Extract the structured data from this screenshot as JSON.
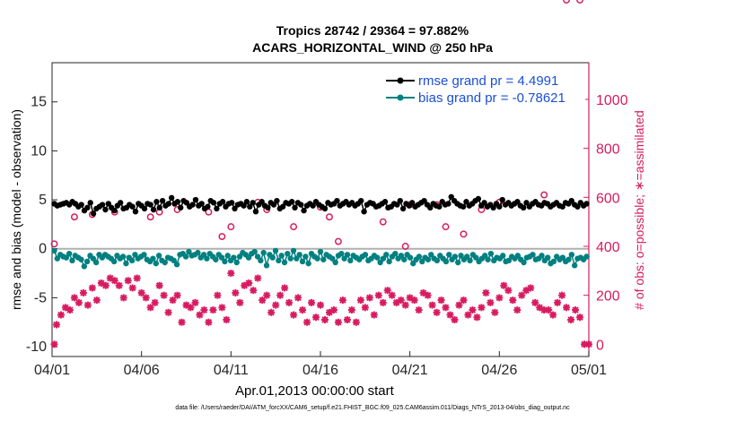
{
  "chart_data": {
    "type": "line",
    "title_line1": "Tropics 28742 / 29364 = 97.882%",
    "title_line2": "ACARS_HORIZONTAL_WIND @ 250 hPa",
    "xlabel": "Apr.01,2013 00:00:00 start",
    "ylabel_left": "rmse and bias (model - observation)",
    "ylabel_right": "# of obs: o=possible; ∗=assimilated",
    "footnote": "data file: /Users/raeder/DAI/ATM_forcXX/CAM6_setup/f.e21.FHIST_BGC.f09_025.CAM6assim.011/Diags_NTrS_2013-04/obs_diag_output.nc",
    "x_ticks": [
      "04/01",
      "04/06",
      "04/11",
      "04/16",
      "04/21",
      "04/26",
      "05/01"
    ],
    "x_range_days": [
      0,
      30
    ],
    "ylim_left": [
      -11,
      19
    ],
    "ylim_right": [
      -50,
      1150
    ],
    "y_ticks_left": [
      "-10",
      "-5",
      "0",
      "5",
      "10",
      "15"
    ],
    "y_ticks_right": [
      "0",
      "200",
      "400",
      "600",
      "800",
      "1000"
    ],
    "zero_line": 0,
    "legend": {
      "location": "top-right",
      "entries": [
        "rmse grand pr = 4.4991",
        "bias grand pr = -0.78621"
      ]
    },
    "colors": {
      "rmse": "#000000",
      "bias": "#008080",
      "obs": "#d81b60",
      "legend_text": "#1a4fd6"
    },
    "series_rmse": [
      4.6,
      4.4,
      4.5,
      4.6,
      4.7,
      4.5,
      4.8,
      4.6,
      4.3,
      4.5,
      3.9,
      4.2,
      4.7,
      3.6,
      4.1,
      4.3,
      4.5,
      4.0,
      4.6,
      4.2,
      3.9,
      4.4,
      4.7,
      4.1,
      4.2,
      4.5,
      4.3,
      3.8,
      4.6,
      4.4,
      4.1,
      4.6,
      4.5,
      4.0,
      4.8,
      4.2,
      4.9,
      4.4,
      4.6,
      5.2,
      4.6,
      4.8,
      4.2,
      4.9,
      4.7,
      4.3,
      4.5,
      5.0,
      4.4,
      4.6,
      4.1,
      4.3,
      4.9,
      4.7,
      4.1,
      4.6,
      4.8,
      4.3,
      4.6,
      4.7,
      4.1,
      4.5,
      4.6,
      4.4,
      4.8,
      4.3,
      4.7,
      3.8,
      4.5,
      4.8,
      4.4,
      4.2,
      4.7,
      4.5,
      4.9,
      4.1,
      4.3,
      4.7,
      4.6,
      4.8,
      4.2,
      4.7,
      4.5,
      3.9,
      4.4,
      4.6,
      4.4,
      4.8,
      4.5,
      4.3,
      4.1,
      4.7,
      4.5,
      4.6,
      4.9,
      4.4,
      4.6,
      4.8,
      4.5,
      4.7,
      4.4,
      4.6,
      4.9,
      3.8,
      4.5,
      4.7,
      4.6,
      4.3,
      4.4,
      4.6,
      4.8,
      4.2,
      4.3,
      4.6,
      4.5,
      4.9,
      4.1,
      4.6,
      4.4,
      4.7,
      4.3,
      4.5,
      4.7,
      4.9,
      4.5,
      4.2,
      4.6,
      4.4,
      4.3,
      4.8,
      4.5,
      4.6,
      5.3,
      4.9,
      4.6,
      4.4,
      4.3,
      4.8,
      4.4,
      4.6,
      4.9,
      5.1,
      4.4,
      4.7,
      4.3,
      4.5,
      4.2,
      4.6,
      4.3,
      5.0,
      4.5,
      4.7,
      4.4,
      4.6,
      4.8,
      4.4,
      4.2,
      4.7,
      4.3,
      4.6,
      4.8,
      4.5,
      4.4,
      4.7,
      4.6,
      4.3,
      4.5,
      4.7,
      4.4,
      4.3,
      4.7,
      4.6,
      4.9,
      4.5,
      4.3,
      4.7,
      4.4,
      4.6
    ],
    "series_bias": [
      -0.2,
      -1.0,
      -0.6,
      -0.8,
      -0.9,
      -0.5,
      -1.2,
      -0.7,
      -0.9,
      -1.1,
      -1.8,
      -1.3,
      -0.7,
      -1.0,
      -1.4,
      -0.6,
      -0.9,
      -0.6,
      -0.8,
      -1.0,
      -1.3,
      -0.7,
      -1.0,
      -0.8,
      -1.5,
      -0.9,
      -1.2,
      -0.6,
      -1.0,
      -0.8,
      -0.6,
      -1.1,
      -1.3,
      -1.0,
      -1.5,
      -0.7,
      -1.2,
      -1.4,
      -0.9,
      -1.0,
      -1.2,
      -1.6,
      -0.6,
      -0.5,
      -0.8,
      -0.3,
      -0.7,
      -0.6,
      -0.4,
      -0.9,
      -0.6,
      -1.0,
      -0.5,
      -0.8,
      -1.1,
      -0.6,
      -0.9,
      -1.3,
      -0.7,
      -1.2,
      -0.9,
      -1.4,
      -0.8,
      -0.4,
      -0.6,
      -0.9,
      -0.5,
      -0.3,
      -0.8,
      -1.2,
      -0.4,
      -1.7,
      -0.6,
      -0.9,
      -0.2,
      -1.2,
      -0.7,
      -1.4,
      -0.5,
      -1.0,
      -0.2,
      -1.0,
      -0.6,
      -1.3,
      -0.8,
      -1.5,
      -0.5,
      -0.8,
      -1.0,
      -0.3,
      -1.1,
      -0.6,
      -0.8,
      -1.0,
      -1.4,
      -0.7,
      -0.5,
      -1.0,
      -0.6,
      -1.2,
      -0.7,
      -0.9,
      -1.1,
      -0.8,
      -0.6,
      -1.2,
      -1.0,
      -0.7,
      -0.9,
      -1.4,
      -1.0,
      -0.6,
      -1.3,
      -0.8,
      -0.5,
      -1.0,
      -0.7,
      -1.1,
      -0.6,
      -0.9,
      -1.5,
      -1.1,
      -0.8,
      -1.3,
      -0.9,
      -1.1,
      -0.6,
      -1.0,
      -1.2,
      -0.7,
      -1.0,
      -1.3,
      -0.6,
      -1.1,
      -0.8,
      -1.4,
      -0.7,
      -1.1,
      -0.8,
      -1.2,
      -0.6,
      -0.9,
      -1.3,
      -1.0,
      -0.7,
      -1.1,
      -0.5,
      -1.2,
      -0.9,
      -1.0,
      -0.7,
      -1.3,
      -1.2,
      -0.8,
      -1.0,
      -0.7,
      -1.1,
      -1.4,
      -0.9,
      -0.8,
      -0.6,
      -1.1,
      -1.0,
      -0.7,
      -1.2,
      -0.9,
      -1.5,
      -1.3,
      -0.8,
      -1.1,
      -0.9,
      -1.3,
      -1.1,
      -0.6,
      -1.7,
      -1.0,
      -0.9,
      -1.1,
      -0.8
    ],
    "obs_days": [
      0.125,
      0.125,
      30.0,
      0.25,
      0.5,
      0.75,
      1.0,
      1.25,
      1.5,
      1.75,
      2.0,
      2.25,
      2.5,
      2.75,
      3.0,
      3.25,
      3.5,
      3.75,
      4.0,
      4.25,
      4.5,
      4.75,
      5.0,
      5.25,
      5.5,
      5.75,
      6.0,
      6.25,
      6.5,
      6.75,
      7.0,
      7.25,
      7.5,
      7.75,
      8.0,
      8.25,
      8.5,
      8.75,
      9.0,
      9.25,
      9.5,
      9.75,
      10.0,
      10.25,
      10.5,
      10.75,
      11.0,
      11.25,
      11.5,
      11.75,
      12.0,
      12.25,
      12.5,
      12.75,
      13.0,
      13.25,
      13.5,
      13.75,
      14.0,
      14.25,
      14.5,
      14.75,
      15.0,
      15.25,
      15.5,
      15.75,
      16.0,
      16.25,
      16.5,
      16.75,
      17.0,
      17.25,
      17.5,
      17.75,
      18.0,
      18.25,
      18.5,
      18.75,
      19.0,
      19.25,
      19.5,
      19.75,
      20.0,
      20.25,
      20.5,
      20.75,
      21.0,
      21.25,
      21.5,
      21.75,
      22.0,
      22.25,
      22.5,
      22.75,
      23.0,
      23.25,
      23.5,
      23.75,
      24.0,
      24.25,
      24.5,
      24.75,
      25.0,
      25.25,
      25.5,
      25.75,
      26.0,
      26.25,
      26.5,
      26.75,
      27.0,
      27.25,
      27.5,
      27.75,
      28.0,
      28.25,
      28.5,
      28.75,
      29.0,
      29.25,
      29.5,
      29.75,
      1.25,
      2.25,
      3.5,
      5.5,
      6.0,
      7.0,
      8.75,
      9.5,
      10.0,
      11.5,
      12.0,
      13.5,
      15.0,
      15.5,
      16.0,
      18.5,
      19.75,
      20.0,
      21.5,
      22.0,
      23.0,
      24.0,
      25.0,
      27.5,
      28.75,
      29.5
    ],
    "obs_counts": [
      0,
      410,
      0,
      80,
      120,
      150,
      140,
      190,
      170,
      210,
      160,
      230,
      180,
      250,
      240,
      270,
      260,
      240,
      190,
      260,
      230,
      270,
      210,
      190,
      150,
      170,
      240,
      200,
      130,
      180,
      200,
      90,
      160,
      150,
      170,
      120,
      140,
      90,
      140,
      200,
      150,
      100,
      290,
      210,
      170,
      240,
      250,
      220,
      270,
      180,
      200,
      130,
      160,
      200,
      230,
      170,
      120,
      190,
      140,
      90,
      170,
      110,
      160,
      100,
      130,
      140,
      90,
      180,
      100,
      140,
      90,
      180,
      150,
      190,
      120,
      200,
      170,
      220,
      200,
      170,
      180,
      160,
      190,
      180,
      140,
      210,
      200,
      160,
      130,
      180,
      150,
      120,
      100,
      160,
      180,
      120,
      140,
      110,
      150,
      210,
      170,
      130,
      190,
      240,
      220,
      180,
      140,
      200,
      220,
      230,
      170,
      150,
      140,
      140,
      120,
      170,
      200,
      150,
      100,
      140,
      110,
      0,
      520,
      530,
      540,
      520,
      540,
      550,
      540,
      440,
      480,
      580,
      550,
      480,
      560,
      520,
      420,
      500,
      400,
      570,
      570,
      480,
      450,
      550,
      580,
      610
    ],
    "obs_kinds": [
      "assim",
      "possible",
      "assim",
      "assim",
      "assim",
      "assim",
      "assim",
      "assim",
      "assim",
      "assim",
      "assim",
      "assim",
      "assim",
      "assim",
      "assim",
      "assim",
      "assim",
      "assim",
      "assim",
      "assim",
      "assim",
      "assim",
      "assim",
      "assim",
      "assim",
      "assim",
      "assim",
      "assim",
      "assim",
      "assim",
      "assim",
      "assim",
      "assim",
      "assim",
      "assim",
      "assim",
      "assim",
      "assim",
      "assim",
      "assim",
      "assim",
      "assim",
      "assim",
      "assim",
      "assim",
      "assim",
      "assim",
      "assim",
      "assim",
      "assim",
      "assim",
      "assim",
      "assim",
      "assim",
      "assim",
      "assim",
      "assim",
      "assim",
      "assim",
      "assim",
      "assim",
      "assim",
      "assim",
      "assim",
      "assim",
      "assim",
      "assim",
      "assim",
      "assim",
      "assim",
      "assim",
      "assim",
      "assim",
      "assim",
      "assim",
      "assim",
      "assim",
      "assim",
      "assim",
      "assim",
      "assim",
      "assim",
      "assim",
      "assim",
      "assim",
      "assim",
      "assim",
      "assim",
      "assim",
      "assim",
      "assim",
      "assim",
      "assim",
      "assim",
      "assim",
      "assim",
      "assim",
      "assim",
      "assim",
      "assim",
      "assim",
      "assim",
      "assim",
      "assim",
      "assim",
      "assim",
      "assim",
      "assim",
      "assim",
      "assim",
      "assim",
      "assim",
      "assim",
      "assim",
      "assim",
      "assim",
      "assim",
      "assim",
      "assim",
      "assim",
      "assim",
      "assim",
      "possible",
      "possible",
      "possible",
      "possible",
      "possible",
      "possible",
      "possible",
      "possible",
      "possible",
      "possible",
      "possible",
      "possible",
      "possible",
      "possible",
      "possible",
      "possible",
      "possible",
      "possible",
      "possible",
      "possible",
      "possible",
      "possible",
      "possible",
      "possible",
      "possible",
      "possible"
    ]
  }
}
